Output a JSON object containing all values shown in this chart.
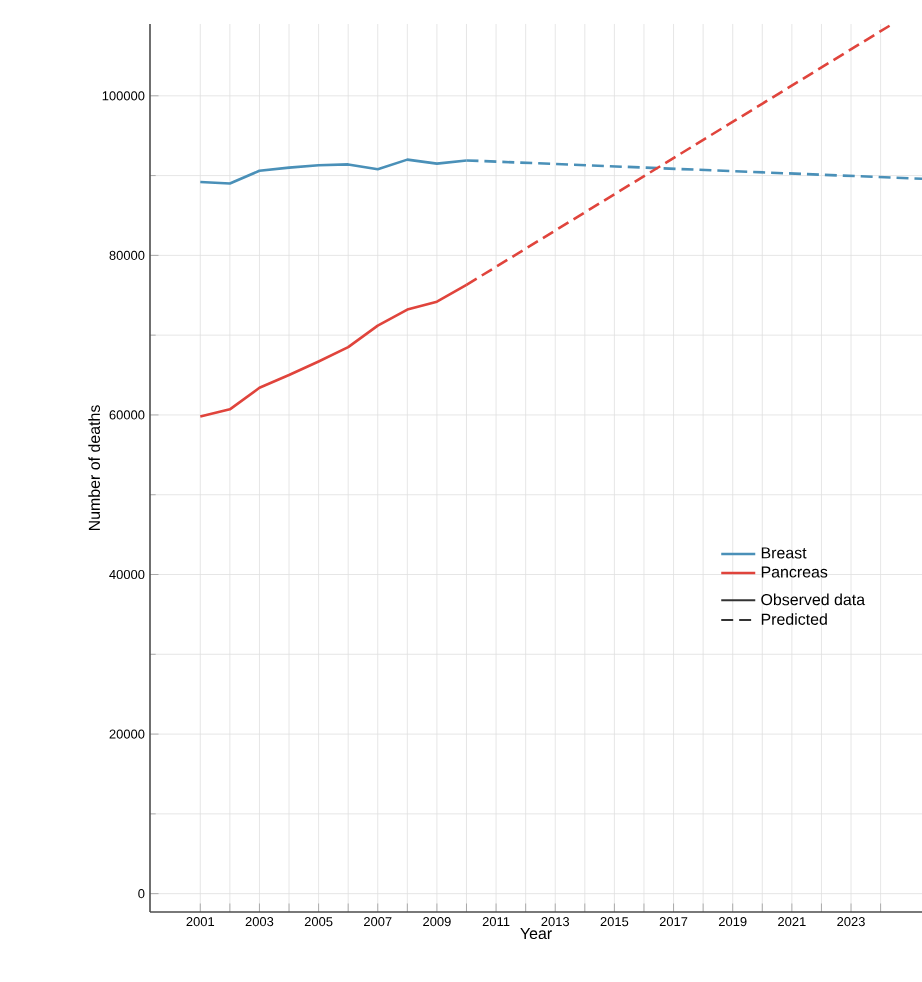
{
  "chart_data": {
    "type": "line",
    "xlabel": "Year",
    "ylabel": "Number of deaths",
    "xlim": [
      1999.3,
      2025.4
    ],
    "ylim": [
      -2300,
      109000
    ],
    "xticks": [
      2001,
      {
        "value": 2002,
        "label": null
      },
      2003,
      {
        "value": 2004,
        "label": null
      },
      2005,
      {
        "value": 2006,
        "label": null
      },
      2007,
      {
        "value": 2008,
        "label": null
      },
      2009,
      {
        "value": 2010,
        "label": null
      },
      2011,
      {
        "value": 2012,
        "label": null
      },
      2013,
      {
        "value": 2014,
        "label": null
      },
      2015,
      {
        "value": 2016,
        "label": null
      },
      2017,
      {
        "value": 2018,
        "label": null
      },
      2019,
      {
        "value": 2020,
        "label": null
      },
      2021,
      {
        "value": 2022,
        "label": null
      },
      2023,
      {
        "value": 2024,
        "label": null
      }
    ],
    "yticks": [
      0,
      20000,
      40000,
      60000,
      80000,
      100000
    ],
    "grid": true,
    "legend": "right",
    "marker": "none",
    "annotations": [
      "Observed data",
      "Predicted"
    ],
    "series": [
      {
        "name": "Breast",
        "color": "#4a90b8",
        "line_style": "solid",
        "x": [
          2001,
          2002,
          2003,
          2004,
          2005,
          2006,
          2007,
          2008,
          2009,
          2010
        ],
        "values": [
          89200,
          89000,
          90600,
          91000,
          91300,
          91400,
          90800,
          92000,
          91500,
          91900
        ]
      },
      {
        "name": "Pancreas",
        "color": "#e0443c",
        "line_style": "solid",
        "x": [
          2001,
          2002,
          2003,
          2004,
          2005,
          2006,
          2007,
          2008,
          2009,
          2010
        ],
        "values": [
          59800,
          60700,
          63400,
          65000,
          66700,
          68500,
          71200,
          73200,
          74200,
          76300
        ]
      },
      {
        "color": "#4a90b8",
        "line_style": "dashed",
        "x": [
          2010,
          2025.4
        ],
        "values": [
          91900,
          89600
        ]
      },
      {
        "color": "#e0443c",
        "line_style": "dashed",
        "x": [
          2010,
          2024.4
        ],
        "values": [
          76300,
          109000
        ]
      }
    ]
  }
}
